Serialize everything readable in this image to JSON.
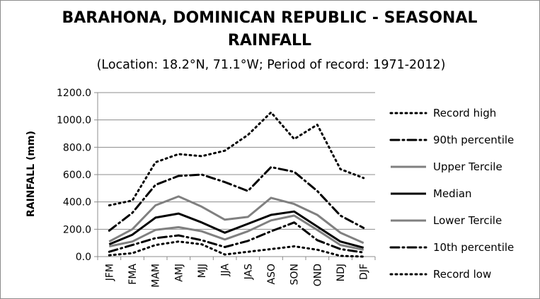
{
  "chart_data": {
    "type": "line",
    "title_line1": "BARAHONA, DOMINICAN REPUBLIC - SEASONAL",
    "title_line2": "RAINFALL",
    "subtitle": "(Location: 18.2°N, 71.1°W; Period of record: 1971-2012)",
    "xlabel": "",
    "ylabel": "RAINFALL (mm)",
    "ylim": [
      0,
      1200
    ],
    "yticks": [
      "0.0",
      "200.0",
      "400.0",
      "600.0",
      "800.0",
      "1000.0",
      "1200.0"
    ],
    "grid": true,
    "legend_position": "right",
    "categories": [
      "JFM",
      "FMA",
      "MAM",
      "AMJ",
      "MJJ",
      "JJA",
      "JAS",
      "ASO",
      "SON",
      "OND",
      "NDJ",
      "DJF"
    ],
    "series": [
      {
        "name": "Record high",
        "color": "#000000",
        "style": "dotted",
        "values": [
          375,
          410,
          690,
          750,
          735,
          775,
          890,
          1055,
          860,
          965,
          640,
          575
        ]
      },
      {
        "name": "90th percentile",
        "color": "#000000",
        "style": "dashdot",
        "values": [
          190,
          320,
          525,
          590,
          600,
          545,
          480,
          655,
          620,
          480,
          300,
          210
        ]
      },
      {
        "name": "Upper Tercile",
        "color": "#808080",
        "style": "solid",
        "values": [
          110,
          200,
          375,
          440,
          365,
          270,
          290,
          430,
          385,
          305,
          175,
          100
        ]
      },
      {
        "name": "Median",
        "color": "#000000",
        "style": "solid",
        "values": [
          90,
          160,
          285,
          315,
          250,
          175,
          240,
          305,
          330,
          220,
          110,
          65
        ]
      },
      {
        "name": "Lower Tercile",
        "color": "#808080",
        "style": "solid",
        "values": [
          75,
          110,
          195,
          215,
          185,
          125,
          185,
          265,
          300,
          195,
          85,
          50
        ]
      },
      {
        "name": "10th percentile",
        "color": "#000000",
        "style": "dashdot",
        "values": [
          35,
          85,
          135,
          155,
          120,
          70,
          115,
          185,
          250,
          120,
          55,
          30
        ]
      },
      {
        "name": "Record low",
        "color": "#000000",
        "style": "dotted",
        "values": [
          10,
          25,
          85,
          110,
          90,
          15,
          35,
          55,
          75,
          50,
          5,
          0
        ]
      }
    ]
  }
}
